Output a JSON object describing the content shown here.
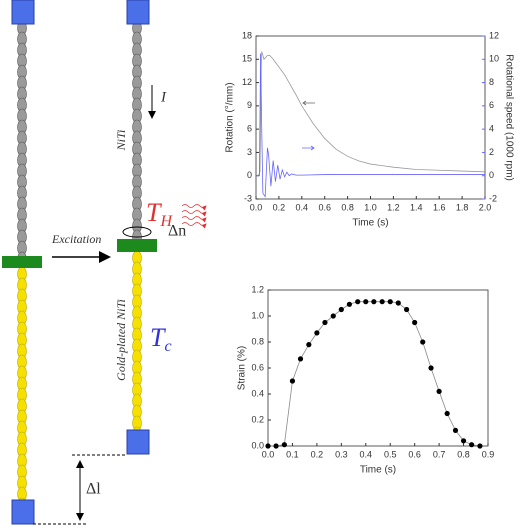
{
  "diagram": {
    "current": "I",
    "material": "NiTi",
    "hot": {
      "base": "T",
      "sub": "H"
    },
    "excitation": "Excitation",
    "rotation": "Δn",
    "coated": "Gold-plated NiTi",
    "cold": {
      "base": "T",
      "sub": "c"
    },
    "elongation": "Δl"
  },
  "chart_data": [
    {
      "type": "line",
      "x_label": "Time (s)",
      "y_label": "Rotation (°/mm)",
      "y2_label": "Rotational speed (1000 rpm)",
      "xlim": [
        0,
        2
      ],
      "xticks": [
        {
          "value": 0,
          "label": "0.0"
        },
        0.2,
        0.4,
        0.6,
        0.8,
        {
          "value": 1,
          "label": "1.0"
        },
        1.2,
        1.4,
        1.6,
        1.8,
        {
          "value": 2,
          "label": "2.0"
        }
      ],
      "ylim": [
        -3,
        18
      ],
      "yticks": [
        -3,
        0,
        3,
        6,
        9,
        12,
        15,
        18
      ],
      "y2lim": [
        -2,
        12
      ],
      "y2ticks": [
        -2,
        0,
        2,
        4,
        6,
        8,
        10,
        12
      ],
      "series": [
        {
          "color": "#999999",
          "x": [
            0,
            0.02,
            0.035,
            0.045,
            0.05,
            0.07,
            0.1,
            0.12,
            0.15,
            0.2,
            0.25,
            0.3,
            0.35,
            0.4,
            0.5,
            0.6,
            0.7,
            0.8,
            0.9,
            1.0,
            1.2,
            1.4,
            1.6,
            1.8,
            2.0
          ],
          "values": [
            0,
            0,
            0.5,
            14,
            16,
            15,
            15.5,
            15.5,
            15,
            14,
            13,
            11.7,
            10.4,
            9,
            6.7,
            4.8,
            3.4,
            2.5,
            1.9,
            1.5,
            1.1,
            0.8,
            0.7,
            0.6,
            0.5
          ]
        },
        {
          "color": "#6666ff",
          "axis": "y2",
          "x": [
            0,
            0.03,
            0.04,
            0.05,
            0.06,
            0.08,
            0.1,
            0.11,
            0.13,
            0.15,
            0.17,
            0.19,
            0.21,
            0.23,
            0.25,
            0.27,
            0.29,
            0.31,
            0.35,
            0.4,
            0.6,
            1.0,
            2.0
          ],
          "values": [
            0,
            0,
            10.5,
            4,
            -1.5,
            -1.8,
            2.4,
            1.8,
            -0.9,
            1.3,
            -0.5,
            0.9,
            -0.3,
            0.5,
            -0.1,
            0.3,
            0,
            0.15,
            0.05,
            0.05,
            0.1,
            0.1,
            0.1
          ]
        }
      ]
    },
    {
      "type": "line",
      "markers": true,
      "x_label": "Time (s)",
      "y_label": "Strain (%)",
      "xlim": [
        0,
        0.9
      ],
      "xticks": [
        {
          "value": 0,
          "label": "0.0"
        },
        0.1,
        0.2,
        0.3,
        0.4,
        0.5,
        0.6,
        0.7,
        0.8,
        0.9
      ],
      "ylim": [
        0,
        1.2
      ],
      "yticks": [
        {
          "value": 0,
          "label": "0.0"
        },
        0.2,
        0.4,
        0.6,
        0.8,
        {
          "value": 1,
          "label": "1.0"
        },
        1.2
      ],
      "series": [
        {
          "color": "#000000",
          "x": [
            0,
            0.033,
            0.067,
            0.1,
            0.133,
            0.167,
            0.2,
            0.233,
            0.267,
            0.3,
            0.333,
            0.367,
            0.4,
            0.433,
            0.467,
            0.5,
            0.533,
            0.567,
            0.6,
            0.633,
            0.667,
            0.7,
            0.733,
            0.767,
            0.8,
            0.833,
            0.867
          ],
          "values": [
            0,
            0,
            0.01,
            0.5,
            0.67,
            0.78,
            0.87,
            0.95,
            1.0,
            1.05,
            1.09,
            1.11,
            1.11,
            1.11,
            1.11,
            1.11,
            1.1,
            1.05,
            0.95,
            0.8,
            0.6,
            0.42,
            0.25,
            0.12,
            0.04,
            0.01,
            0
          ]
        }
      ]
    }
  ]
}
